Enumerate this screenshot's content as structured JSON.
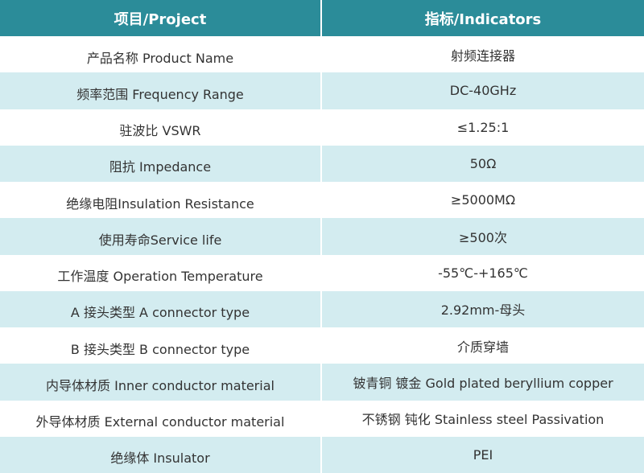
{
  "table": {
    "header": [
      "项目/Project",
      "指标/Indicators"
    ],
    "rows": [
      [
        "产品名称 Product Name",
        "射频连接器"
      ],
      [
        "频率范围 Frequency Range",
        "DC-40GHz"
      ],
      [
        "驻波比 VSWR",
        "≤1.25:1"
      ],
      [
        "阻抗 Impedance",
        "50Ω"
      ],
      [
        "绝缘电阻Insulation Resistance",
        "≥5000MΩ"
      ],
      [
        "使用寿命Service life",
        "≥500次"
      ],
      [
        "工作温度 Operation Temperature",
        "-55℃-+165℃"
      ],
      [
        "A 接头类型 A connector type",
        "2.92mm-母头"
      ],
      [
        "B 接头类型 B connector type",
        "介质穿墙"
      ],
      [
        "内导体材质 Inner conductor material",
        "铍青铜 镀金 Gold plated beryllium copper"
      ],
      [
        "外导体材质 External conductor material",
        "不锈钢 钝化 Stainless steel Passivation"
      ],
      [
        "绝缘体 Insulator",
        "PEI"
      ]
    ]
  }
}
